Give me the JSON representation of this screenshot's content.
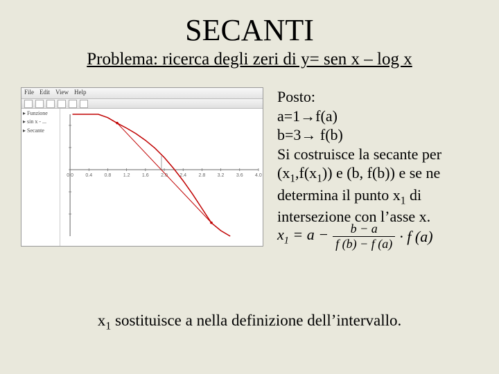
{
  "title": "SECANTI",
  "subtitle": "Problema: ricerca degli zeri di y= sen x – log x",
  "toolbar": {
    "menus": [
      "File",
      "Edit",
      "View",
      "Help"
    ]
  },
  "sidebar": {
    "items": [
      "▸ Funzione",
      "▸ sin x - ...",
      "▸ Secante"
    ]
  },
  "right": {
    "l1": "Posto:",
    "l2": "a=1→f(a)",
    "l3": "b=3→ f(b)",
    "l4": "Si costruisce la secante per",
    "l5a": "(x",
    "l5b": ",f(x",
    "l5c": ")) e (b, f(b)) e se ne",
    "l6a": "determina il punto x",
    "l6b": " di",
    "l7": "intersezione con l’asse x."
  },
  "formula": {
    "lhs1": "x",
    "lhs2": " = a −",
    "num": "b − a",
    "den": "f (b) − f (a)",
    "rhs": "· f (a)"
  },
  "bottom": {
    "a": "x",
    "b": " sostituisce a nella definizione dell’intervallo."
  },
  "chart": {
    "type": "line",
    "xlim": [
      0,
      4
    ],
    "ylim": [
      -1.2,
      1.0
    ],
    "xtick_step": 0.4,
    "ytick_step": 0.4,
    "axis_color": "#666666",
    "grid_color": "#e8e8e8",
    "background_color": "#ffffff",
    "curve_color": "#c00000",
    "secant_color": "#c00000",
    "vline_color": "#888888",
    "line_width": 1.5,
    "secant_width": 1,
    "curve_points": [
      [
        0.05,
        2.99
      ],
      [
        0.1,
        2.4
      ],
      [
        0.2,
        1.8
      ],
      [
        0.4,
        1.31
      ],
      [
        0.6,
        1.08
      ],
      [
        0.8,
        0.94
      ],
      [
        1.0,
        0.84
      ],
      [
        1.2,
        0.75
      ],
      [
        1.4,
        0.65
      ],
      [
        1.6,
        0.53
      ],
      [
        1.8,
        0.39
      ],
      [
        2.0,
        0.22
      ],
      [
        2.2,
        0.02
      ],
      [
        2.4,
        -0.2
      ],
      [
        2.6,
        -0.44
      ],
      [
        2.8,
        -0.7
      ],
      [
        3.0,
        -0.96
      ],
      [
        3.2,
        -1.1
      ],
      [
        3.4,
        -1.2
      ]
    ],
    "secant_a": [
      1.0,
      0.8415
    ],
    "secant_b": [
      3.0,
      -0.9575
    ],
    "x1_drop": 1.94
  }
}
